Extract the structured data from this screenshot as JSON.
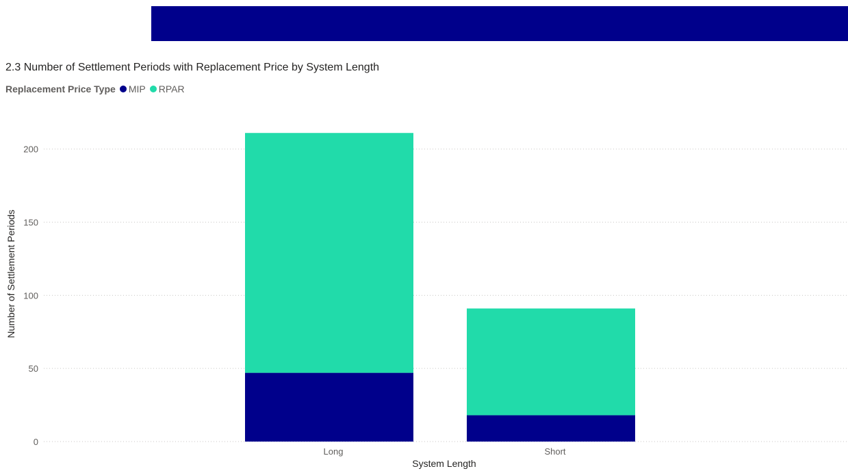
{
  "header": {
    "banner_color": "#00008b"
  },
  "chart_data": {
    "type": "bar",
    "stacked": true,
    "title": "2.3 Number of Settlement Periods with Replacement Price by System Length",
    "legend": {
      "title": "Replacement Price Type",
      "placement": "top-left"
    },
    "categories": [
      "Long",
      "Short"
    ],
    "series": [
      {
        "name": "MIP",
        "color": "#00008b",
        "values": [
          47,
          18
        ]
      },
      {
        "name": "RPAR",
        "color": "#21dbaa",
        "values": [
          164,
          73
        ]
      }
    ],
    "xlabel": "System Length",
    "ylabel": "Number of Settlement Periods",
    "ylim": [
      0,
      220
    ],
    "yticks": [
      0,
      50,
      100,
      150,
      200
    ],
    "grid": true
  }
}
